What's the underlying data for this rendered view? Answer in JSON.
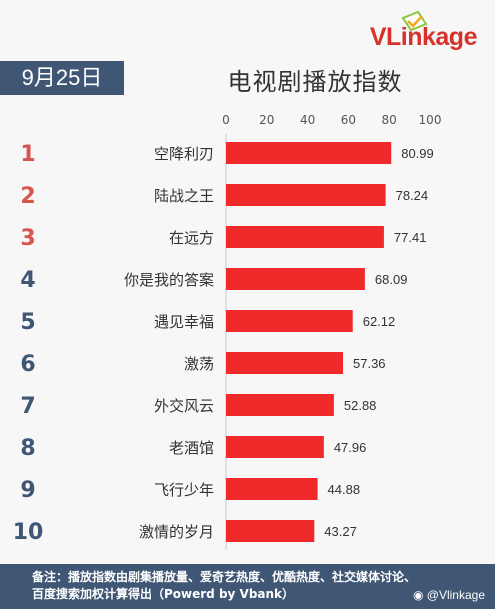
{
  "brand": {
    "logo_text_v": "V",
    "logo_text_rest": "Linkage"
  },
  "date_label": "9月25日",
  "chart_data": {
    "type": "bar",
    "orientation": "horizontal",
    "title": "电视剧播放指数",
    "categories": [
      "空降利刃",
      "陆战之王",
      "在远方",
      "你是我的答案",
      "遇见幸福",
      "激荡",
      "外交风云",
      "老酒馆",
      "飞行少年",
      "激情的岁月"
    ],
    "ranks": [
      "1",
      "2",
      "3",
      "4",
      "5",
      "6",
      "7",
      "8",
      "9",
      "10"
    ],
    "values": [
      80.99,
      78.24,
      77.41,
      68.09,
      62.12,
      57.36,
      52.88,
      47.96,
      44.88,
      43.27
    ],
    "value_labels": [
      "80.99",
      "78.24",
      "77.41",
      "68.09",
      "62.12",
      "57.36",
      "52.88",
      "47.96",
      "44.88",
      "43.27"
    ],
    "xlim": [
      0,
      100
    ],
    "ticks": [
      0,
      20,
      40,
      60,
      80,
      100
    ],
    "tick_labels": [
      "0",
      "20",
      "40",
      "60",
      "80",
      "100"
    ],
    "axis_position": "top",
    "grid": false,
    "colors": {
      "bar": "#f02a2a",
      "rank_top3": "#d9534f",
      "rank_other": "#3f5674"
    }
  },
  "footer": {
    "note_line1": "备注：播放指数由剧集播放量、爱奇艺热度、优酷热度、社交媒体讨论、",
    "note_line2": "百度搜索加权计算得出（Powerd by Vbank）"
  },
  "watermark": {
    "icon": "weibo-icon",
    "text": "@Vlinkage"
  }
}
